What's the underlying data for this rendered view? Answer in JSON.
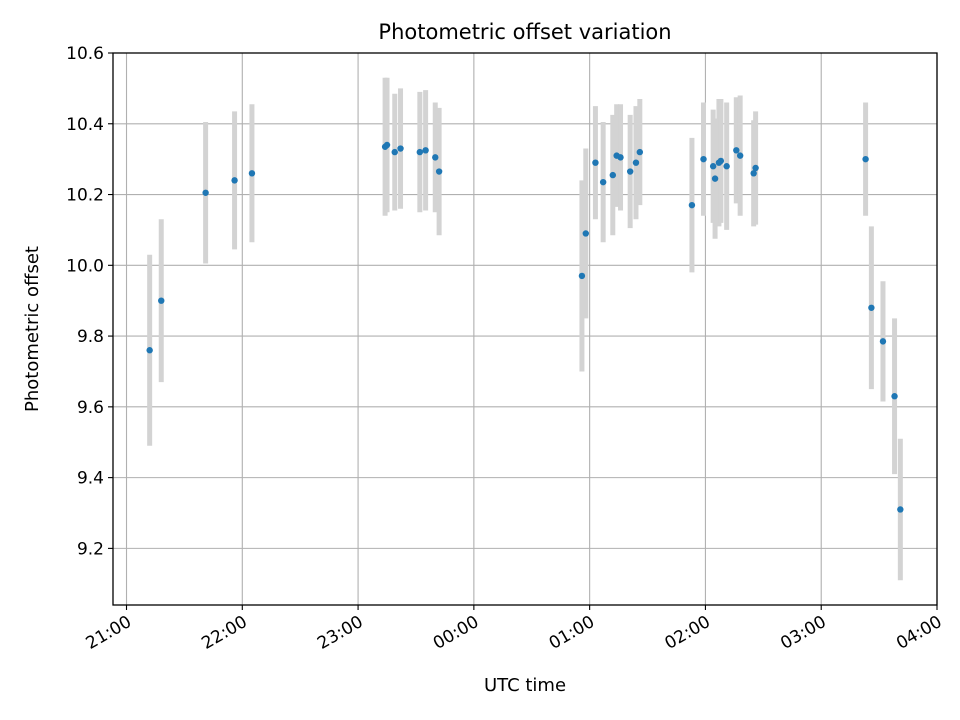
{
  "chart_data": {
    "type": "scatter",
    "title": "Photometric offset variation",
    "xlabel": "UTC time",
    "ylabel": "Photometric offset",
    "grid": true,
    "xlim": [
      "20:53",
      "04:00"
    ],
    "ylim": [
      9.04,
      10.6
    ],
    "x_ticks": [
      "21:00",
      "22:00",
      "23:00",
      "00:00",
      "01:00",
      "02:00",
      "03:00",
      "04:00"
    ],
    "y_ticks": [
      9.2,
      9.4,
      9.6,
      9.8,
      10.0,
      10.2,
      10.4,
      10.6
    ],
    "y_tick_labels": [
      "9.2",
      "9.4",
      "9.6",
      "9.8",
      "10.0",
      "10.2",
      "10.4",
      "10.6"
    ],
    "marker_color": "#1f77b4",
    "errorbar_color": "#d3d3d3",
    "points": [
      {
        "x": "21:12",
        "y": 9.76,
        "yerr": 0.27
      },
      {
        "x": "21:18",
        "y": 9.9,
        "yerr": 0.23
      },
      {
        "x": "21:41",
        "y": 10.205,
        "yerr": 0.2
      },
      {
        "x": "21:56",
        "y": 10.24,
        "yerr": 0.195
      },
      {
        "x": "22:05",
        "y": 10.26,
        "yerr": 0.195
      },
      {
        "x": "23:14",
        "y": 10.335,
        "yerr": 0.195
      },
      {
        "x": "23:15",
        "y": 10.34,
        "yerr": 0.19
      },
      {
        "x": "23:19",
        "y": 10.32,
        "yerr": 0.165
      },
      {
        "x": "23:22",
        "y": 10.33,
        "yerr": 0.17
      },
      {
        "x": "23:32",
        "y": 10.32,
        "yerr": 0.17
      },
      {
        "x": "23:35",
        "y": 10.325,
        "yerr": 0.17
      },
      {
        "x": "23:40",
        "y": 10.305,
        "yerr": 0.155
      },
      {
        "x": "23:42",
        "y": 10.265,
        "yerr": 0.18
      },
      {
        "x": "00:56",
        "y": 9.97,
        "yerr": 0.27
      },
      {
        "x": "00:58",
        "y": 10.09,
        "yerr": 0.24
      },
      {
        "x": "01:03",
        "y": 10.29,
        "yerr": 0.16
      },
      {
        "x": "01:07",
        "y": 10.235,
        "yerr": 0.17
      },
      {
        "x": "01:12",
        "y": 10.255,
        "yerr": 0.17
      },
      {
        "x": "01:14",
        "y": 10.31,
        "yerr": 0.145
      },
      {
        "x": "01:16",
        "y": 10.305,
        "yerr": 0.15
      },
      {
        "x": "01:21",
        "y": 10.265,
        "yerr": 0.16
      },
      {
        "x": "01:24",
        "y": 10.29,
        "yerr": 0.16
      },
      {
        "x": "01:26",
        "y": 10.32,
        "yerr": 0.15
      },
      {
        "x": "01:53",
        "y": 10.17,
        "yerr": 0.19
      },
      {
        "x": "01:59",
        "y": 10.3,
        "yerr": 0.16
      },
      {
        "x": "02:04",
        "y": 10.28,
        "yerr": 0.16
      },
      {
        "x": "02:05",
        "y": 10.245,
        "yerr": 0.17
      },
      {
        "x": "02:07",
        "y": 10.29,
        "yerr": 0.18
      },
      {
        "x": "02:08",
        "y": 10.295,
        "yerr": 0.175
      },
      {
        "x": "02:11",
        "y": 10.28,
        "yerr": 0.18
      },
      {
        "x": "02:16",
        "y": 10.325,
        "yerr": 0.15
      },
      {
        "x": "02:18",
        "y": 10.31,
        "yerr": 0.17
      },
      {
        "x": "02:25",
        "y": 10.26,
        "yerr": 0.15
      },
      {
        "x": "02:26",
        "y": 10.275,
        "yerr": 0.16
      },
      {
        "x": "03:23",
        "y": 10.3,
        "yerr": 0.16
      },
      {
        "x": "03:26",
        "y": 9.88,
        "yerr": 0.23
      },
      {
        "x": "03:32",
        "y": 9.785,
        "yerr": 0.17
      },
      {
        "x": "03:38",
        "y": 9.63,
        "yerr": 0.22
      },
      {
        "x": "03:41",
        "y": 9.31,
        "yerr": 0.2
      }
    ]
  }
}
